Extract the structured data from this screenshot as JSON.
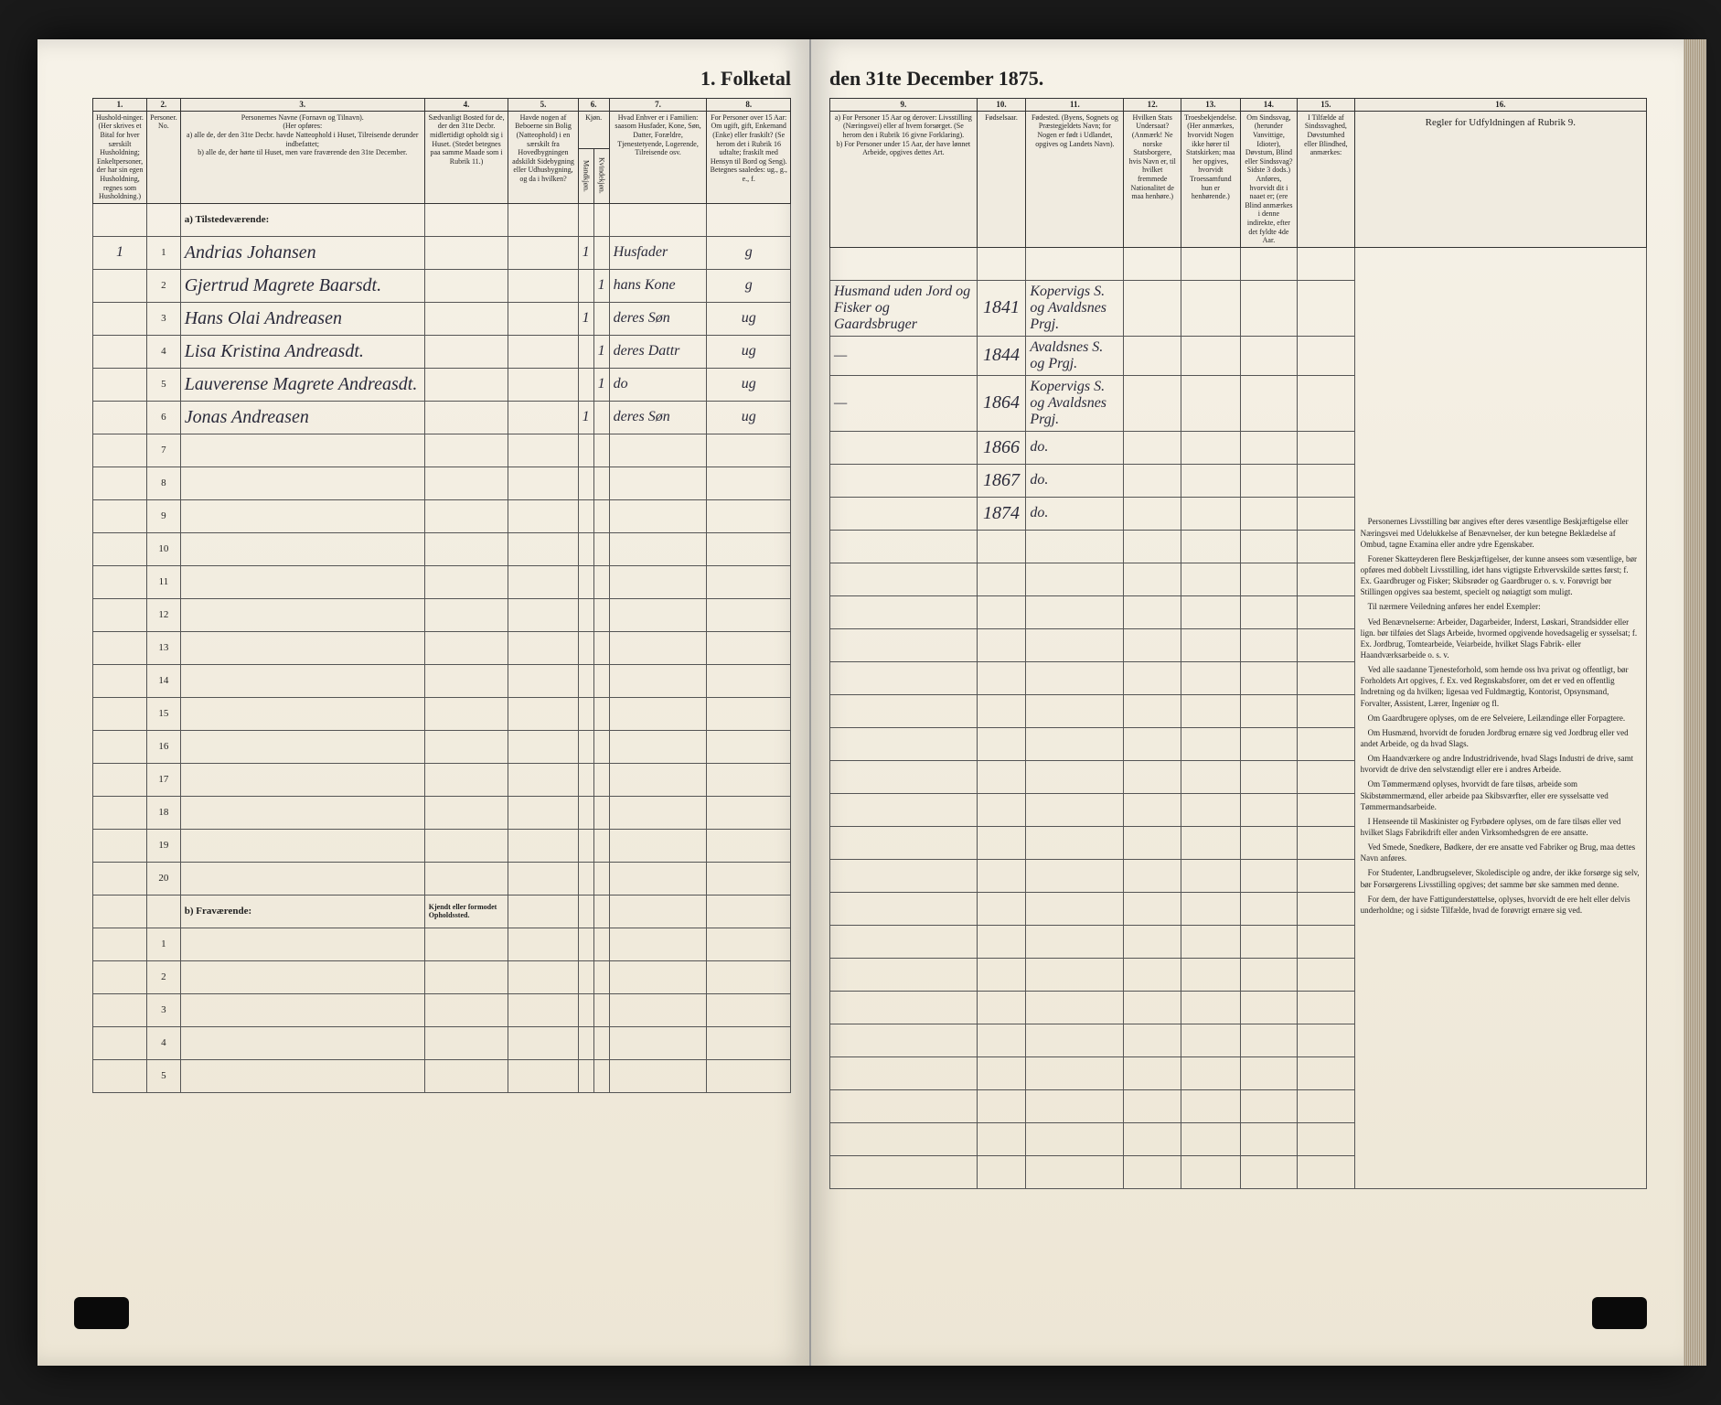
{
  "title_left": "1. Folketal",
  "title_right": "den 31te December 1875.",
  "column_numbers": [
    "1.",
    "2.",
    "3.",
    "4.",
    "5.",
    "6.",
    "7.",
    "8.",
    "9.",
    "10.",
    "11.",
    "12.",
    "13.",
    "14.",
    "15.",
    "16."
  ],
  "headers_left": {
    "col1": "Hushold-ninger. (Her skrives et Bital for hver særskilt Husholdning; Enkeltpersoner, der har sin egen Husholdning, regnes som Husholdning.)",
    "col2": "Personer. No.",
    "col3": "Personernes Navne (Fornavn og Tilnavn).\n(Her opføres:\na) alle de, der den 31te Decbr. havde Natteophold i Huset, Tilreisende derunder indbefattet;\nb) alle de, der hørte til Huset, men vare fraværende den 31te December.",
    "col4": "Sædvanligt Bosted for de, der den 31te Decbr. midlertidigt opholdt sig i Huset. (Stedet betegnes paa samme Maade som i Rubrik 11.)",
    "col5": "Havde nogen af Beboerne sin Bolig (Natteophold) i en særskilt fra Hovedbygningen adskildt Sidebygning eller Udhusbygning, og da i hvilken?",
    "col6": "Kjøn.",
    "col6a": "Mandkjøn.",
    "col6b": "Kvindekjøn.",
    "col7": "Hvad Enhver er i Familien:\nsaasom Husfader, Kone, Søn, Datter, Forældre, Tjenestetyende, Logerende, Tilreisende osv.",
    "col8": "For Personer over 15 Aar: Om ugift, gift, Enkemand (Enke) eller fraskilt? (Se herom det i Rubrik 16 udtalte; fraskilt med Hensyn til Bord og Seng). Betegnes saaledes: ug., g., e., f."
  },
  "headers_right": {
    "col9": "a) For Personer 15 Aar og derover: Livsstilling (Næringsvei) eller af hvem forsørget. (Se herom den i Rubrik 16 givne Forklaring).\nb) For Personer under 15 Aar, der have lønnet Arbeide, opgives dettes Art.",
    "col10": "Fødselsaar.",
    "col11": "Fødested.\n(Byens, Sognets og Præstegjeldets Navn; for Nogen er født i Udlandet, opgives og Landets Navn).",
    "col12": "Hvilken Stats Undersaat?\n(Anmærk! Ne norske Statsborgere, hvis Navn er, til hvilket fremmede Nationalitet de maa henhøre.)",
    "col13": "Troesbekjendelse.\n(Her anmærkes, hvorvidt Nogen ikke hører til Statskirken; maa her opgives, hvorvidt Troessamfund hun er henhørende.)",
    "col14": "Om Sindssvag, (herunder Vanvittige, Idioter), Døvstum, Blind eller Sindssvag? Sidste 3 dods.) Anføres, hvorvidt dit i naaet er; (ere Blind anmærkes i denne indirekte, efter det fyldte 4de Aar.",
    "col15": "I Tilfælde af Sindssvaghed, Døvstumhed eller Blindhed, anmærkes:",
    "col16": "Regler for Udfyldningen af Rubrik 9."
  },
  "section_a": "a) Tilstedeværende:",
  "section_b": "b) Fraværende:",
  "section_b_col4": "Kjendt eller formodet Opholdssted.",
  "rows": [
    {
      "hnum": "1",
      "pnum": "1",
      "name": "Andrias Johansen",
      "sex": "1",
      "family": "Husfader",
      "marital": "g",
      "occupation": "Husmand uden Jord og Fisker og Gaardsbruger",
      "year": "1841",
      "place": "Kopervigs S. og Avaldsnes Prgj."
    },
    {
      "hnum": "",
      "pnum": "2",
      "name": "Gjertrud Magrete Baarsdt.",
      "sex": "1",
      "family": "hans Kone",
      "marital": "g",
      "occupation": "—",
      "year": "1844",
      "place": "Avaldsnes S. og Prgj."
    },
    {
      "hnum": "",
      "pnum": "3",
      "name": "Hans Olai Andreasen",
      "sex": "1",
      "family": "deres Søn",
      "marital": "ug",
      "occupation": "—",
      "year": "1864",
      "place": "Kopervigs S. og Avaldsnes Prgj."
    },
    {
      "hnum": "",
      "pnum": "4",
      "name": "Lisa Kristina Andreasdt.",
      "sex": "1",
      "family": "deres Dattr",
      "marital": "ug",
      "occupation": "",
      "year": "1866",
      "place": "do."
    },
    {
      "hnum": "",
      "pnum": "5",
      "name": "Lauverense Magrete Andreasdt.",
      "sex": "1",
      "family": "do",
      "marital": "ug",
      "occupation": "",
      "year": "1867",
      "place": "do."
    },
    {
      "hnum": "",
      "pnum": "6",
      "name": "Jonas Andreasen",
      "sex": "1",
      "family": "deres Søn",
      "marital": "ug",
      "occupation": "",
      "year": "1874",
      "place": "do."
    }
  ],
  "empty_rows_a": [
    7,
    8,
    9,
    10,
    11,
    12,
    13,
    14,
    15,
    16,
    17,
    18,
    19,
    20
  ],
  "empty_rows_b": [
    1,
    2,
    3,
    4,
    5
  ],
  "instructions": [
    "Personernes Livsstilling bør angives efter deres væsentlige Beskjæftigelse eller Næringsvei med Udelukkelse af Benævnelser, der kun betegne Beklædelse af Ombud, tagne Examina eller andre ydre Egenskaber.",
    "Forener Skatteyderen flere Beskjæftigelser, der kunne ansees som væsentlige, bør opføres med dobbelt Livsstilling, idet hans vigtigste Erhvervskilde sættes først; f. Ex. Gaardbruger og Fisker; Skibsrøder og Gaardbruger o. s. v. Forøvrigt bør Stillingen opgives saa bestemt, specielt og nøiagtigt som muligt.",
    "Til nærmere Veiledning anføres her endel Exempler:",
    "Ved Benævnelserne: Arbeider, Dagarbeider, Inderst, Løskari, Strandsidder eller lign. bør tilføies det Slags Arbeide, hvormed opgivende hovedsagelig er sysselsat; f. Ex. Jordbrug, Tomtearbeide, Veiarbeide, hvilket Slags Fabrik- eller Haandværksarbeide o. s. v.",
    "Ved alle saadanne Tjenesteforhold, som hemde oss hva privat og offentligt, bør Forholdets Art opgives, f. Ex. ved Regnskabsforer, om det er ved en offentlig Indretning og da hvilken; ligesaa ved Fuldmægtig, Kontorist, Opsynsmand, Forvalter, Assistent, Lærer, Ingeniør og fl.",
    "Om Gaardbrugere oplyses, om de ere Selveiere, Leilændinge eller Forpagtere.",
    "Om Husmænd, hvorvidt de foruden Jordbrug ernære sig ved Jordbrug eller ved andet Arbeide, og da hvad Slags.",
    "Om Haandværkere og andre Industridrivende, hvad Slags Industri de drive, samt hvorvidt de drive den selvstændigt eller ere i andres Arbeide.",
    "Om Tømmermænd oplyses, hvorvidt de fare tilsøs, arbeide som Skibstømmermænd, eller arbeide paa Skibsværfter, eller ere sysselsatte ved Tømmermandsarbeide.",
    "I Henseende til Maskinister og Fyrbødere oplyses, om de fare tilsøs eller ved hvilket Slags Fabrikdrift eller anden Virksomhedsgren de ere ansatte.",
    "Ved Smede, Snedkere, Bødkere, der ere ansatte ved Fabriker og Brug, maa dettes Navn anføres.",
    "For Studenter, Landbrugselever, Skoledisciple og andre, der ikke forsørge sig selv, bør Forsørgerens Livsstilling opgives; det samme bør ske sammen med denne.",
    "For dem, der have Fattigunderstøttelse, oplyses, hvorvidt de ere helt eller delvis underholdne; og i sidste Tilfælde, hvad de forøvrigt ernære sig ved."
  ]
}
